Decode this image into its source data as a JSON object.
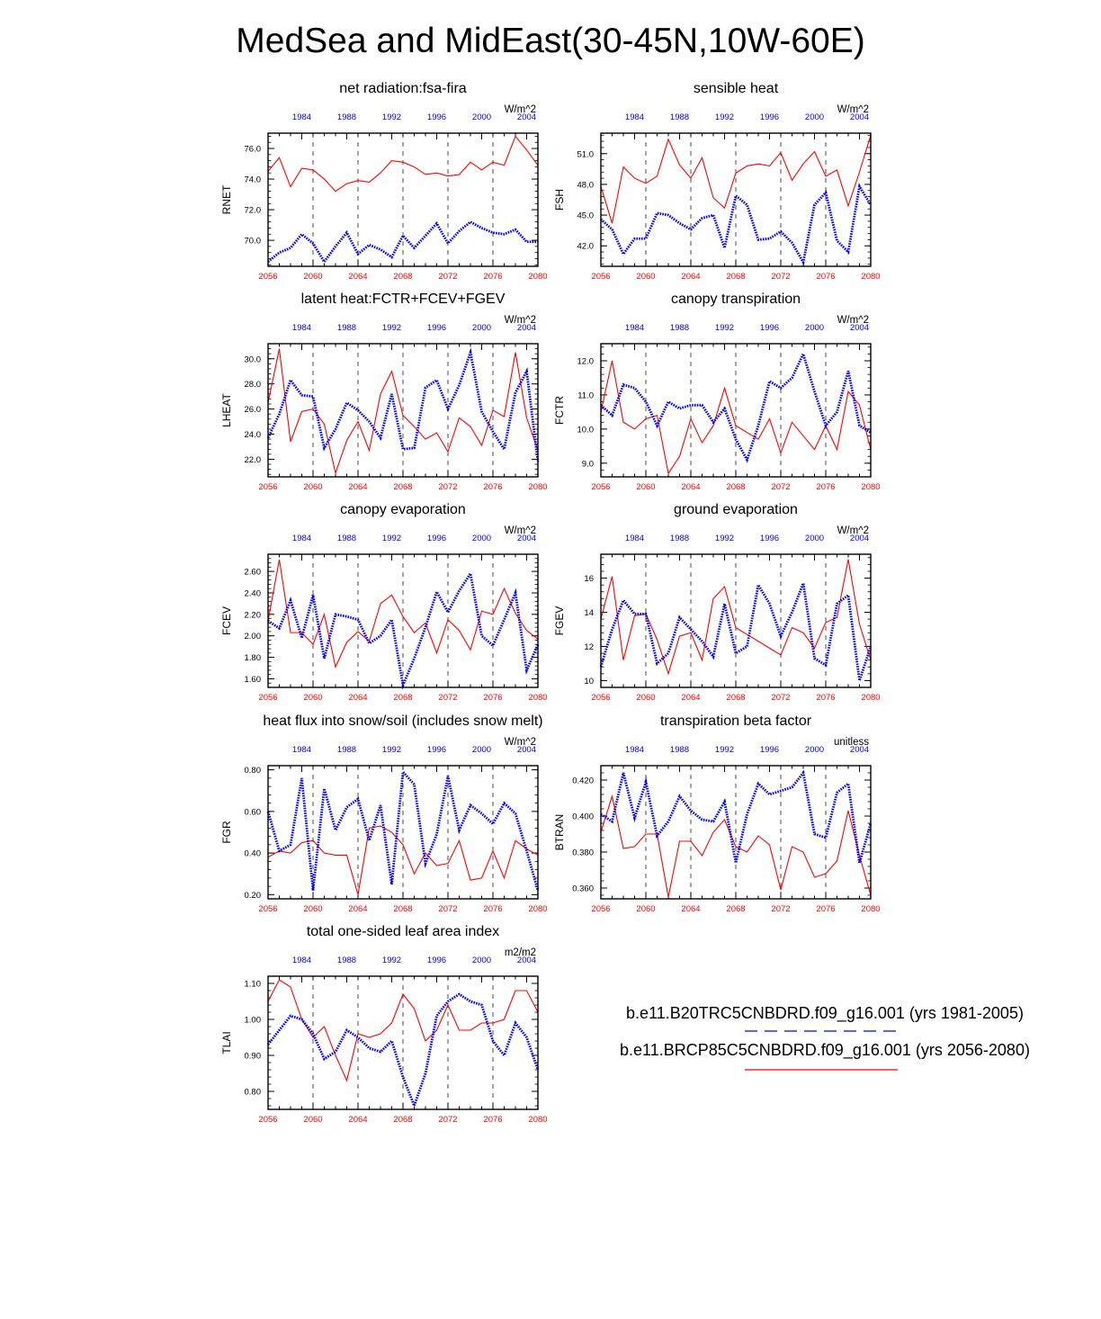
{
  "figure": {
    "title": "MedSea and MidEast(30-45N,10W-60E)",
    "colors": {
      "future": "#ff0000",
      "historical": "#0000ff",
      "axis": "#000000"
    },
    "future_years": [
      "2056",
      "2060",
      "2064",
      "2068",
      "2072",
      "2076",
      "2080"
    ],
    "hist_years": [
      "1984",
      "1988",
      "1992",
      "1996",
      "2000",
      "2004"
    ],
    "legend": {
      "historical": "b.e11.B20TRC5CNBDRD.f09_g16.001 (yrs 1981-2005)",
      "future": "b.e11.BRCP85C5CNBDRD.f09_g16.001 (yrs 2056-2080)"
    }
  },
  "chart_data": [
    {
      "type": "line",
      "title": "net radiation:fsa-fira",
      "ylabel": "RNET",
      "units": "W/m^2",
      "xlim_future": [
        2056,
        2080
      ],
      "xlim_hist": [
        1981,
        2005
      ],
      "ylim": [
        68.3,
        77.0
      ],
      "yticks": [
        70.0,
        72.0,
        74.0,
        76.0
      ],
      "ytick_labels": [
        "70.0",
        "72.0",
        "74.0",
        "76.0"
      ],
      "series": [
        {
          "name": "b.e11.BRCP85C5CNBDRD.f09_g16.001 (yrs 2056-2080)",
          "years": "2056-2080",
          "values": [
            74.5,
            75.4,
            73.5,
            74.7,
            74.6,
            74.0,
            73.2,
            73.7,
            73.9,
            73.8,
            74.4,
            75.2,
            75.1,
            74.8,
            74.3,
            74.4,
            74.2,
            74.3,
            75.1,
            74.6,
            75.1,
            74.9,
            76.8,
            75.9,
            74.9
          ]
        },
        {
          "name": "b.e11.B20TRC5CNBDRD.f09_g16.001 (yrs 1981-2005)",
          "years": "1981-2005",
          "values": [
            68.6,
            69.2,
            69.5,
            70.4,
            69.8,
            68.6,
            69.6,
            70.5,
            69.1,
            69.7,
            69.4,
            68.9,
            70.3,
            69.5,
            70.3,
            71.1,
            69.8,
            70.6,
            71.2,
            70.8,
            70.5,
            70.4,
            70.7,
            69.9,
            69.9
          ]
        }
      ]
    },
    {
      "type": "line",
      "title": "sensible heat",
      "ylabel": "FSH",
      "units": "W/m^2",
      "xlim_future": [
        2056,
        2080
      ],
      "xlim_hist": [
        1981,
        2005
      ],
      "ylim": [
        40.0,
        53.0
      ],
      "yticks": [
        42.0,
        45.0,
        48.0,
        51.0
      ],
      "ytick_labels": [
        "42.0",
        "45.0",
        "48.0",
        "51.0"
      ],
      "series": [
        {
          "name": "b.e11.BRCP85C5CNBDRD.f09_g16.001 (yrs 2056-2080)",
          "years": "2056-2080",
          "values": [
            47.8,
            44.2,
            49.7,
            48.6,
            48.1,
            48.8,
            52.4,
            49.9,
            48.6,
            50.6,
            46.7,
            45.7,
            49.1,
            49.8,
            50.0,
            49.8,
            51.1,
            48.4,
            50.0,
            51.2,
            48.8,
            49.4,
            45.9,
            49.2,
            52.8
          ]
        },
        {
          "name": "b.e11.B20TRC5CNBDRD.f09_g16.001 (yrs 1981-2005)",
          "years": "1981-2005",
          "values": [
            44.6,
            43.6,
            41.2,
            42.7,
            42.7,
            45.2,
            45.0,
            44.2,
            43.6,
            44.7,
            45.0,
            41.8,
            46.9,
            46.0,
            42.6,
            42.7,
            43.4,
            42.3,
            40.4,
            46.0,
            47.2,
            42.5,
            41.4,
            47.8,
            46.0
          ]
        }
      ]
    },
    {
      "type": "line",
      "title": "latent heat:FCTR+FCEV+FGEV",
      "ylabel": "LHEAT",
      "units": "W/m^2",
      "xlim_future": [
        2056,
        2080
      ],
      "xlim_hist": [
        1981,
        2005
      ],
      "ylim": [
        20.6,
        31.2
      ],
      "yticks": [
        22.0,
        24.0,
        26.0,
        28.0,
        30.0
      ],
      "ytick_labels": [
        "22.0",
        "24.0",
        "26.0",
        "28.0",
        "30.0"
      ],
      "series": [
        {
          "name": "b.e11.BRCP85C5CNBDRD.f09_g16.001 (yrs 2056-2080)",
          "years": "2056-2080",
          "values": [
            26.5,
            30.8,
            23.4,
            25.8,
            26.0,
            24.8,
            20.9,
            23.5,
            25.0,
            22.7,
            27.2,
            29.0,
            25.5,
            24.6,
            23.6,
            24.1,
            22.6,
            25.3,
            24.6,
            23.1,
            25.9,
            25.4,
            30.5,
            25.3,
            22.7
          ]
        },
        {
          "name": "b.e11.B20TRC5CNBDRD.f09_g16.001 (yrs 1981-2005)",
          "years": "1981-2005",
          "values": [
            23.7,
            25.6,
            28.3,
            27.1,
            27.0,
            22.9,
            24.4,
            26.5,
            25.9,
            25.0,
            23.7,
            27.2,
            22.8,
            22.9,
            27.7,
            28.3,
            26.0,
            27.9,
            30.5,
            25.8,
            24.2,
            22.8,
            27.3,
            29.0,
            21.8
          ]
        }
      ]
    },
    {
      "type": "line",
      "title": "canopy transpiration",
      "ylabel": "FCTR",
      "units": "W/m^2",
      "xlim_future": [
        2056,
        2080
      ],
      "xlim_hist": [
        1981,
        2005
      ],
      "ylim": [
        8.6,
        12.5
      ],
      "yticks": [
        9.0,
        10.0,
        11.0,
        12.0
      ],
      "ytick_labels": [
        "9.0",
        "10.0",
        "11.0",
        "12.0"
      ],
      "series": [
        {
          "name": "b.e11.BRCP85C5CNBDRD.f09_g16.001 (yrs 2056-2080)",
          "years": "2056-2080",
          "values": [
            10.5,
            12.0,
            10.2,
            10.0,
            10.3,
            10.4,
            8.7,
            9.2,
            10.3,
            9.6,
            10.1,
            11.2,
            10.1,
            9.9,
            9.7,
            10.3,
            9.3,
            10.2,
            9.8,
            9.4,
            10.1,
            9.4,
            11.1,
            10.7,
            9.4
          ]
        },
        {
          "name": "b.e11.B20TRC5CNBDRD.f09_g16.001 (yrs 1981-2005)",
          "years": "1981-2005",
          "values": [
            10.7,
            10.4,
            11.3,
            11.2,
            10.8,
            10.1,
            10.8,
            10.6,
            10.7,
            10.7,
            10.2,
            10.6,
            9.7,
            9.1,
            10.1,
            11.4,
            11.2,
            11.5,
            12.2,
            11.1,
            10.1,
            10.5,
            11.7,
            10.1,
            9.9
          ]
        }
      ]
    },
    {
      "type": "line",
      "title": "canopy evaporation",
      "ylabel": "FCEV",
      "units": "W/m^2",
      "xlim_future": [
        2056,
        2080
      ],
      "xlim_hist": [
        1981,
        2005
      ],
      "ylim": [
        1.52,
        2.76
      ],
      "yticks": [
        1.6,
        1.8,
        2.0,
        2.2,
        2.4,
        2.6
      ],
      "ytick_labels": [
        "1.60",
        "1.80",
        "2.00",
        "2.20",
        "2.40",
        "2.60"
      ],
      "series": [
        {
          "name": "b.e11.BRCP85C5CNBDRD.f09_g16.001 (yrs 2056-2080)",
          "years": "2056-2080",
          "values": [
            2.14,
            2.71,
            2.03,
            2.03,
            1.92,
            2.2,
            1.71,
            1.94,
            2.04,
            1.95,
            2.3,
            2.38,
            2.18,
            2.03,
            2.12,
            1.84,
            2.15,
            2.05,
            1.87,
            2.23,
            2.2,
            2.44,
            2.21,
            2.05,
            1.97
          ]
        },
        {
          "name": "b.e11.B20TRC5CNBDRD.f09_g16.001 (yrs 1981-2005)",
          "years": "1981-2005",
          "values": [
            2.14,
            2.07,
            2.33,
            1.98,
            2.38,
            1.79,
            2.2,
            2.18,
            2.15,
            1.93,
            2.0,
            2.15,
            1.54,
            1.79,
            2.08,
            2.41,
            2.22,
            2.42,
            2.58,
            2.0,
            1.91,
            2.15,
            2.4,
            1.68,
            1.92
          ]
        }
      ]
    },
    {
      "type": "line",
      "title": "ground evaporation",
      "ylabel": "FGEV",
      "units": "W/m^2",
      "xlim_future": [
        2056,
        2080
      ],
      "xlim_hist": [
        1981,
        2005
      ],
      "ylim": [
        9.6,
        17.4
      ],
      "yticks": [
        10,
        12,
        14,
        16
      ],
      "ytick_labels": [
        "10",
        "12",
        "14",
        "16"
      ],
      "series": [
        {
          "name": "b.e11.BRCP85C5CNBDRD.f09_g16.001 (yrs 2056-2080)",
          "years": "2056-2080",
          "values": [
            13.6,
            16.1,
            11.2,
            13.8,
            13.9,
            12.4,
            10.4,
            12.6,
            12.8,
            11.2,
            14.8,
            15.5,
            13.1,
            12.7,
            12.3,
            11.9,
            11.5,
            13.1,
            12.8,
            11.9,
            13.4,
            13.7,
            17.1,
            13.3,
            11.2
          ]
        },
        {
          "name": "b.e11.B20TRC5CNBDRD.f09_g16.001 (yrs 1981-2005)",
          "years": "1981-2005",
          "values": [
            10.8,
            13.0,
            14.7,
            13.9,
            13.9,
            11.0,
            11.6,
            13.7,
            13.0,
            12.3,
            11.4,
            14.5,
            11.6,
            12.0,
            15.6,
            14.5,
            12.6,
            14.0,
            15.7,
            11.3,
            10.9,
            14.5,
            15.0,
            10.0,
            12.0
          ]
        }
      ]
    },
    {
      "type": "line",
      "title": "heat flux into snow/soil (includes snow melt)",
      "ylabel": "FGR",
      "units": "W/m^2",
      "xlim_future": [
        2056,
        2080
      ],
      "xlim_hist": [
        1981,
        2005
      ],
      "ylim": [
        0.18,
        0.82
      ],
      "yticks": [
        0.2,
        0.4,
        0.6,
        0.8
      ],
      "ytick_labels": [
        "0.20",
        "0.40",
        "0.60",
        "0.80"
      ],
      "series": [
        {
          "name": "b.e11.BRCP85C5CNBDRD.f09_g16.001 (yrs 2056-2080)",
          "years": "2056-2080",
          "values": [
            0.38,
            0.41,
            0.4,
            0.45,
            0.46,
            0.4,
            0.39,
            0.39,
            0.2,
            0.52,
            0.53,
            0.5,
            0.44,
            0.3,
            0.4,
            0.34,
            0.35,
            0.46,
            0.27,
            0.28,
            0.41,
            0.28,
            0.46,
            0.42,
            0.39
          ]
        },
        {
          "name": "b.e11.B20TRC5CNBDRD.f09_g16.001 (yrs 1981-2005)",
          "years": "1981-2005",
          "values": [
            0.6,
            0.41,
            0.44,
            0.76,
            0.22,
            0.71,
            0.51,
            0.62,
            0.66,
            0.46,
            0.63,
            0.25,
            0.79,
            0.73,
            0.35,
            0.49,
            0.77,
            0.51,
            0.63,
            0.59,
            0.54,
            0.64,
            0.59,
            0.41,
            0.22
          ]
        }
      ]
    },
    {
      "type": "line",
      "title": "transpiration beta factor",
      "ylabel": "BTRAN",
      "units": "unitless",
      "xlim_future": [
        2056,
        2080
      ],
      "xlim_hist": [
        1981,
        2005
      ],
      "ylim": [
        0.354,
        0.428
      ],
      "yticks": [
        0.36,
        0.38,
        0.4,
        0.42
      ],
      "ytick_labels": [
        "0.360",
        "0.380",
        "0.400",
        "0.420"
      ],
      "series": [
        {
          "name": "b.e11.BRCP85C5CNBDRD.f09_g16.001 (yrs 2056-2080)",
          "years": "2056-2080",
          "values": [
            0.391,
            0.411,
            0.382,
            0.383,
            0.39,
            0.39,
            0.355,
            0.386,
            0.386,
            0.378,
            0.391,
            0.398,
            0.383,
            0.38,
            0.389,
            0.384,
            0.359,
            0.383,
            0.38,
            0.366,
            0.368,
            0.375,
            0.403,
            0.378,
            0.356
          ]
        },
        {
          "name": "b.e11.B20TRC5CNBDRD.f09_g16.001 (yrs 1981-2005)",
          "years": "1981-2005",
          "values": [
            0.401,
            0.397,
            0.424,
            0.399,
            0.419,
            0.389,
            0.397,
            0.411,
            0.403,
            0.398,
            0.397,
            0.408,
            0.374,
            0.401,
            0.418,
            0.412,
            0.414,
            0.416,
            0.424,
            0.39,
            0.388,
            0.413,
            0.418,
            0.374,
            0.396
          ]
        }
      ]
    },
    {
      "type": "line",
      "title": "total one-sided leaf area index",
      "ylabel": "TLAI",
      "units": "m2/m2",
      "xlim_future": [
        2056,
        2080
      ],
      "xlim_hist": [
        1981,
        2005
      ],
      "ylim": [
        0.75,
        1.12
      ],
      "yticks": [
        0.8,
        0.9,
        1.0,
        1.1
      ],
      "ytick_labels": [
        "0.80",
        "0.90",
        "1.00",
        "1.10"
      ],
      "series": [
        {
          "name": "b.e11.BRCP85C5CNBDRD.f09_g16.001 (yrs 2056-2080)",
          "years": "2056-2080",
          "values": [
            1.05,
            1.11,
            1.09,
            1.0,
            0.95,
            0.98,
            0.9,
            0.83,
            0.96,
            0.95,
            0.96,
            0.99,
            1.07,
            1.03,
            0.94,
            0.97,
            1.04,
            0.97,
            0.97,
            0.99,
            0.99,
            1.0,
            1.08,
            1.08,
            1.02
          ]
        },
        {
          "name": "b.e11.B20TRC5CNBDRD.f09_g16.001 (yrs 1981-2005)",
          "years": "1981-2005",
          "values": [
            0.93,
            0.97,
            1.01,
            1.0,
            0.96,
            0.89,
            0.91,
            0.97,
            0.95,
            0.92,
            0.91,
            0.94,
            0.84,
            0.76,
            0.85,
            1.01,
            1.05,
            1.07,
            1.05,
            1.04,
            0.94,
            0.9,
            0.99,
            0.95,
            0.86
          ]
        }
      ]
    }
  ]
}
